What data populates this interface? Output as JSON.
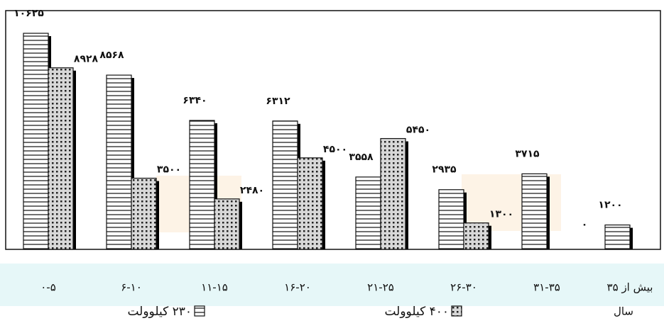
{
  "chart_data": {
    "type": "bar",
    "categories": [
      "۰-۵",
      "۶-۱۰",
      "۱۱-۱۵",
      "۱۶-۲۰",
      "۲۱-۲۵",
      "۲۶-۳۰",
      "۳۱-۳۵",
      "بیش از ۳۵"
    ],
    "x_label": "سال",
    "series": [
      {
        "name": "۲۳۰ کیلوولت",
        "pattern": "horizontal-lines",
        "color": "#ffffff",
        "values": [
          10625,
          8568,
          6340,
          6312,
          3558,
          2935,
          3715,
          1200
        ],
        "value_labels": [
          "۱۰۶۲۵",
          "۸۵۶۸",
          "۶۳۴۰",
          "۶۳۱۲",
          "۳۵۵۸",
          "۲۹۳۵",
          "۳۷۱۵",
          "۱۲۰۰"
        ]
      },
      {
        "name": "۴۰۰ کیلوولت",
        "pattern": "dots",
        "color": "#d0d0d0",
        "values": [
          8928,
          3500,
          2480,
          4500,
          5450,
          1300,
          0,
          0
        ],
        "value_labels": [
          "۸۹۲۸",
          "۳۵۰۰",
          "۲۴۸۰",
          "۴۵۰۰",
          "۵۴۵۰",
          "۱۳۰۰",
          "۰",
          "۰"
        ]
      }
    ]
  }
}
